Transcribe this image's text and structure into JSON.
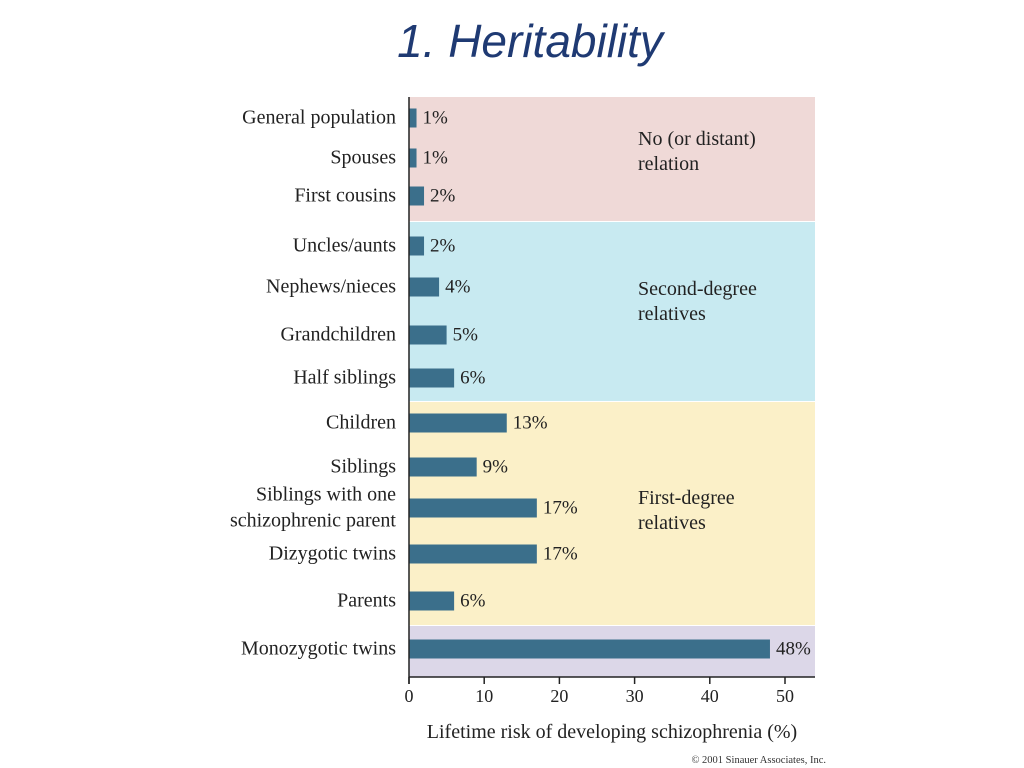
{
  "title": "1. Heritability",
  "chart_data": {
    "type": "bar",
    "orientation": "horizontal",
    "categories": [
      [
        "General population"
      ],
      [
        "Spouses"
      ],
      [
        "First cousins"
      ],
      [
        "Uncles/aunts"
      ],
      [
        "Nephews/nieces"
      ],
      [
        "Grandchildren"
      ],
      [
        "Half siblings"
      ],
      [
        "Children"
      ],
      [
        "Siblings"
      ],
      [
        "Siblings with one",
        "schizophrenic parent"
      ],
      [
        "Dizygotic twins"
      ],
      [
        "Parents"
      ],
      [
        "Monozygotic twins"
      ]
    ],
    "values": [
      1,
      1,
      2,
      2,
      4,
      5,
      6,
      13,
      9,
      17,
      17,
      6,
      48
    ],
    "value_labels": [
      "1%",
      "1%",
      "2%",
      "2%",
      "4%",
      "5%",
      "6%",
      "13%",
      "9%",
      "17%",
      "17%",
      "6%",
      "48%"
    ],
    "groups": [
      {
        "label": [
          "No (or distant)",
          "relation"
        ],
        "color": "#efd9d7",
        "start": 0,
        "end": 2
      },
      {
        "label": [
          "Second-degree",
          "relatives"
        ],
        "color": "#c8eaf1",
        "start": 3,
        "end": 6
      },
      {
        "label": [
          "First-degree",
          "relatives"
        ],
        "color": "#fbf0c8",
        "start": 7,
        "end": 11
      },
      {
        "label": [],
        "color": "#dcd7e8",
        "start": 12,
        "end": 12
      }
    ],
    "bar_color": "#3b6f8b",
    "xlabel": "Lifetime risk of developing schizophrenia (%)",
    "xlim": [
      0,
      54
    ],
    "xticks": [
      0,
      10,
      20,
      30,
      40,
      50
    ],
    "credit": "© 2001 Sinauer Associates, Inc."
  }
}
